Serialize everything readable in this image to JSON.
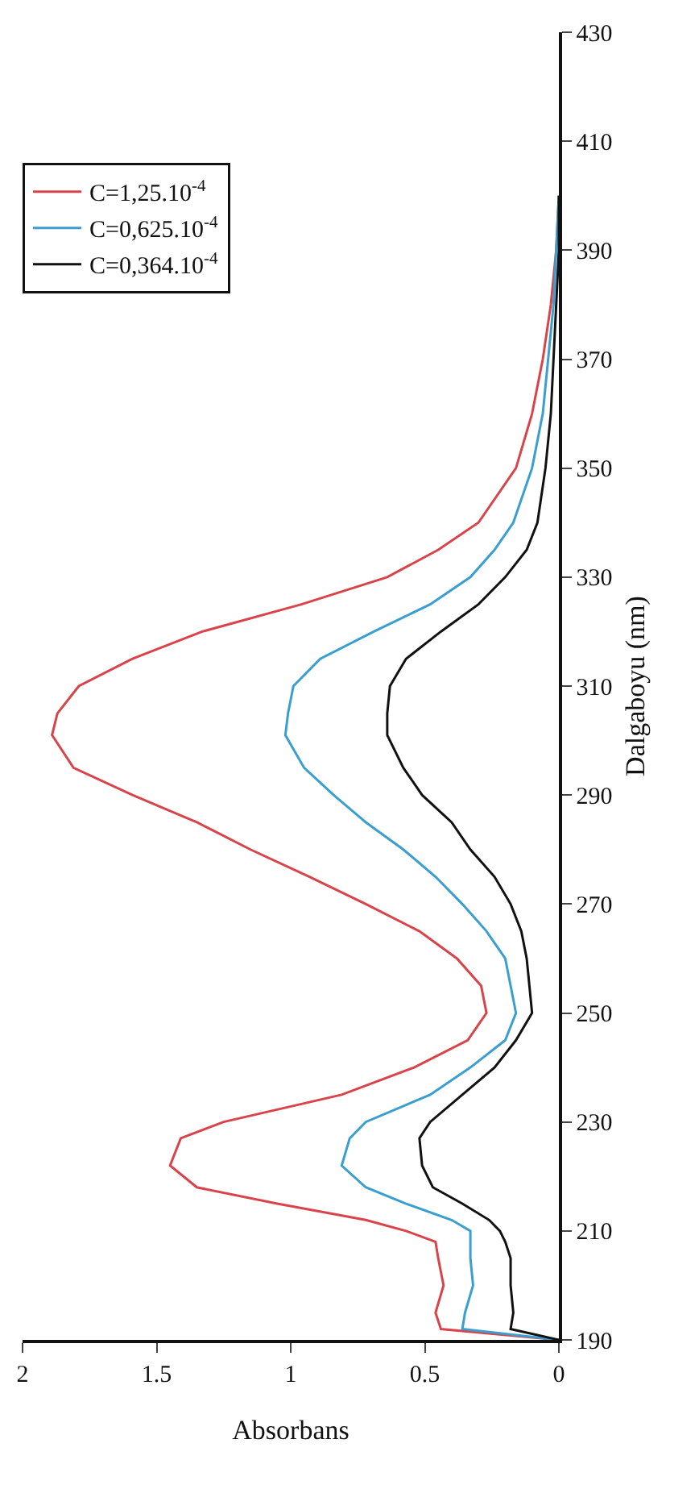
{
  "chart_data": {
    "type": "line",
    "xlabel": "Absorbans",
    "ylabel": "Dalgaboyu (nm)",
    "series": [
      {
        "name": "C=1,25.10$^{-4}$",
        "color": "#d9434a",
        "x": [
          0.0,
          0.44,
          0.46,
          0.43,
          0.45,
          0.46,
          0.57,
          0.72,
          1.05,
          1.35,
          1.45,
          1.41,
          1.25,
          0.81,
          0.54,
          0.34,
          0.27,
          0.29,
          0.38,
          0.52,
          0.72,
          0.93,
          1.15,
          1.35,
          1.59,
          1.81,
          1.89,
          1.87,
          1.79,
          1.59,
          1.33,
          0.96,
          0.64,
          0.45,
          0.3,
          0.16,
          0.1,
          0.06,
          0.03,
          0.01,
          0.0
        ],
        "values": [
          190,
          192,
          195,
          200,
          205,
          208,
          210,
          212,
          215,
          218,
          222,
          227,
          230,
          235,
          240,
          245,
          250,
          255,
          260,
          265,
          270,
          275,
          280,
          285,
          290,
          295,
          301,
          305,
          310,
          315,
          320,
          325,
          330,
          335,
          340,
          350,
          360,
          370,
          380,
          390,
          400
        ]
      },
      {
        "name": "C=0,625.10$^{-4}$",
        "color": "#3a9fd0",
        "x": [
          0.0,
          0.36,
          0.35,
          0.32,
          0.33,
          0.33,
          0.33,
          0.4,
          0.57,
          0.72,
          0.81,
          0.78,
          0.72,
          0.48,
          0.33,
          0.2,
          0.16,
          0.18,
          0.2,
          0.27,
          0.36,
          0.46,
          0.58,
          0.72,
          0.84,
          0.95,
          1.02,
          1.01,
          0.99,
          0.89,
          0.69,
          0.48,
          0.33,
          0.24,
          0.17,
          0.1,
          0.06,
          0.04,
          0.02,
          0.01,
          0.0
        ],
        "values": [
          190,
          192,
          195,
          200,
          205,
          208,
          210,
          212,
          215,
          218,
          222,
          227,
          230,
          235,
          240,
          245,
          250,
          255,
          260,
          265,
          270,
          275,
          280,
          285,
          290,
          295,
          301,
          305,
          310,
          315,
          320,
          325,
          330,
          335,
          340,
          350,
          360,
          370,
          380,
          390,
          400
        ]
      },
      {
        "name": "C=0,364.10$^{-4}$",
        "color": "#111111",
        "x": [
          0.0,
          0.18,
          0.17,
          0.18,
          0.18,
          0.2,
          0.22,
          0.26,
          0.36,
          0.47,
          0.51,
          0.52,
          0.48,
          0.36,
          0.24,
          0.16,
          0.1,
          0.11,
          0.12,
          0.14,
          0.18,
          0.24,
          0.33,
          0.4,
          0.51,
          0.58,
          0.64,
          0.64,
          0.63,
          0.57,
          0.44,
          0.3,
          0.2,
          0.12,
          0.08,
          0.05,
          0.03,
          0.02,
          0.01,
          0.0,
          0.0
        ],
        "values": [
          190,
          192,
          195,
          200,
          205,
          208,
          210,
          212,
          215,
          218,
          222,
          227,
          230,
          235,
          240,
          245,
          250,
          255,
          260,
          265,
          270,
          275,
          280,
          285,
          290,
          295,
          301,
          305,
          310,
          315,
          320,
          325,
          330,
          335,
          340,
          350,
          360,
          370,
          380,
          390,
          400
        ]
      }
    ],
    "xlim": [
      2,
      0
    ],
    "xticks": [
      0,
      0.5,
      1,
      1.5,
      2
    ],
    "ylim": [
      190,
      430
    ],
    "yticks": [
      190,
      210,
      230,
      250,
      270,
      290,
      310,
      330,
      350,
      370,
      390,
      410,
      430
    ],
    "legend": "top left",
    "grid": false,
    "marker": "none",
    "line_style": "solid"
  }
}
